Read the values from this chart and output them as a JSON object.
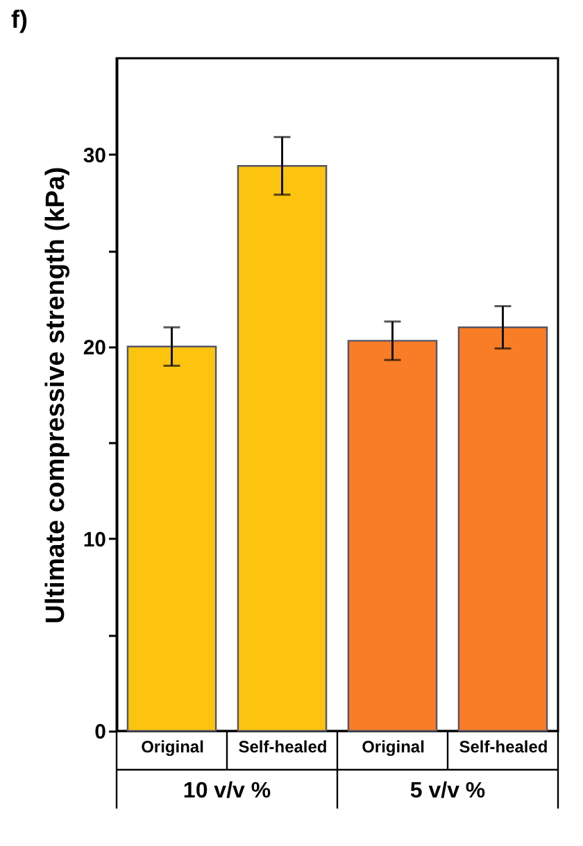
{
  "chart_data": {
    "type": "bar",
    "title": "f)",
    "ylabel": "Ultimate compressive strength (kPa)",
    "categories": [
      "Original",
      "Self-healed",
      "Original",
      "Self-healed"
    ],
    "values": [
      20.0,
      29.4,
      20.3,
      21.0
    ],
    "errors": [
      1.0,
      1.5,
      1.0,
      1.1
    ],
    "colors": [
      "#fcc40f",
      "#fcc40f",
      "#f97c26",
      "#f97c26"
    ],
    "ylim": [
      0,
      35
    ],
    "yticks": [
      0,
      {
        "value": 5,
        "label": null
      },
      10,
      {
        "value": 15,
        "label": null
      },
      20,
      {
        "value": 25,
        "label": null
      },
      30
    ],
    "annotations": [
      "10 v/v %",
      "5 v/v %"
    ]
  }
}
